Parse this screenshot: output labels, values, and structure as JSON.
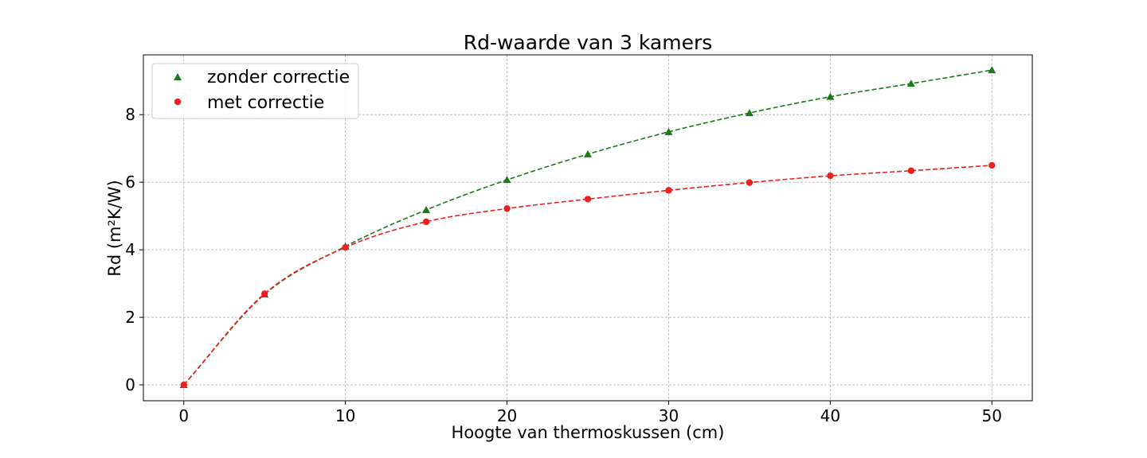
{
  "chart_data": {
    "type": "line",
    "title": "Rd-waarde van 3 kamers",
    "xlabel": "Hoogte van thermoskussen (cm)",
    "ylabel": "Rd (m²K/W)",
    "xlim": [
      -2.5,
      52.5
    ],
    "ylim": [
      -0.47,
      9.77
    ],
    "xticks": [
      0,
      10,
      20,
      30,
      40,
      50
    ],
    "yticks": [
      0,
      2,
      4,
      6,
      8
    ],
    "grid": true,
    "legend_position": "upper-left",
    "x": [
      0,
      5,
      10,
      15,
      20,
      25,
      30,
      35,
      40,
      45,
      50
    ],
    "series": [
      {
        "name": "zonder correctie",
        "marker": "triangle",
        "color": "#1a7a1a",
        "line_style": "dashed",
        "values": [
          0,
          2.68,
          4.1,
          5.18,
          6.07,
          6.83,
          7.49,
          8.05,
          8.53,
          8.92,
          9.32
        ]
      },
      {
        "name": "met correctie",
        "marker": "circle",
        "color": "#ee2020",
        "line_style": "dashed",
        "values": [
          0,
          2.7,
          4.07,
          4.83,
          5.22,
          5.5,
          5.76,
          5.99,
          6.19,
          6.34,
          6.5
        ]
      }
    ]
  }
}
